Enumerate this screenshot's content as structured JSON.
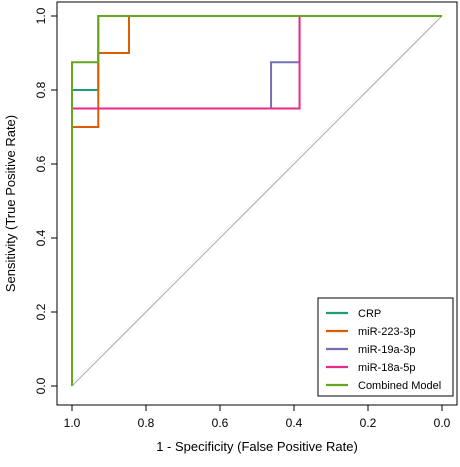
{
  "chart_data": {
    "type": "line",
    "title": "",
    "xlabel": "1 - Specificity (False Positive Rate)",
    "ylabel": "Sensitivity (True Positive Rate)",
    "x_axis_reversed": true,
    "xlim": [
      1.0,
      0.0
    ],
    "ylim": [
      0.0,
      1.0
    ],
    "x_ticks": [
      "1.0",
      "0.8",
      "0.6",
      "0.4",
      "0.2",
      "0.0"
    ],
    "y_ticks": [
      "0.0",
      "0.2",
      "0.4",
      "0.6",
      "0.8",
      "1.0"
    ],
    "grid": false,
    "legend_position": "bottom-right",
    "diagonal_reference": {
      "color": "#aaaaaa",
      "from": [
        1.0,
        0.0
      ],
      "to": [
        0.0,
        1.0
      ]
    },
    "series": [
      {
        "name": "CRP",
        "color": "#1b9e77",
        "points": [
          [
            1.0,
            0.0
          ],
          [
            1.0,
            0.8
          ],
          [
            0.929,
            0.8
          ],
          [
            0.929,
            1.0
          ],
          [
            0.0,
            1.0
          ]
        ]
      },
      {
        "name": "miR-223-3p",
        "color": "#d95f02",
        "points": [
          [
            1.0,
            0.0
          ],
          [
            1.0,
            0.7
          ],
          [
            0.929,
            0.7
          ],
          [
            0.929,
            0.9
          ],
          [
            0.846,
            0.9
          ],
          [
            0.846,
            1.0
          ],
          [
            0.0,
            1.0
          ]
        ]
      },
      {
        "name": "miR-19a-3p",
        "color": "#7570b3",
        "points": [
          [
            1.0,
            0.0
          ],
          [
            1.0,
            0.75
          ],
          [
            0.462,
            0.75
          ],
          [
            0.462,
            0.875
          ],
          [
            0.385,
            0.875
          ],
          [
            0.385,
            1.0
          ],
          [
            0.0,
            1.0
          ]
        ]
      },
      {
        "name": "miR-18a-5p",
        "color": "#e7298a",
        "points": [
          [
            1.0,
            0.0
          ],
          [
            1.0,
            0.75
          ],
          [
            0.385,
            0.75
          ],
          [
            0.385,
            1.0
          ],
          [
            0.0,
            1.0
          ]
        ]
      },
      {
        "name": "Combined Model",
        "color": "#66a61e",
        "points": [
          [
            1.0,
            0.0
          ],
          [
            1.0,
            0.875
          ],
          [
            0.929,
            0.875
          ],
          [
            0.929,
            1.0
          ],
          [
            0.0,
            1.0
          ]
        ]
      }
    ]
  }
}
